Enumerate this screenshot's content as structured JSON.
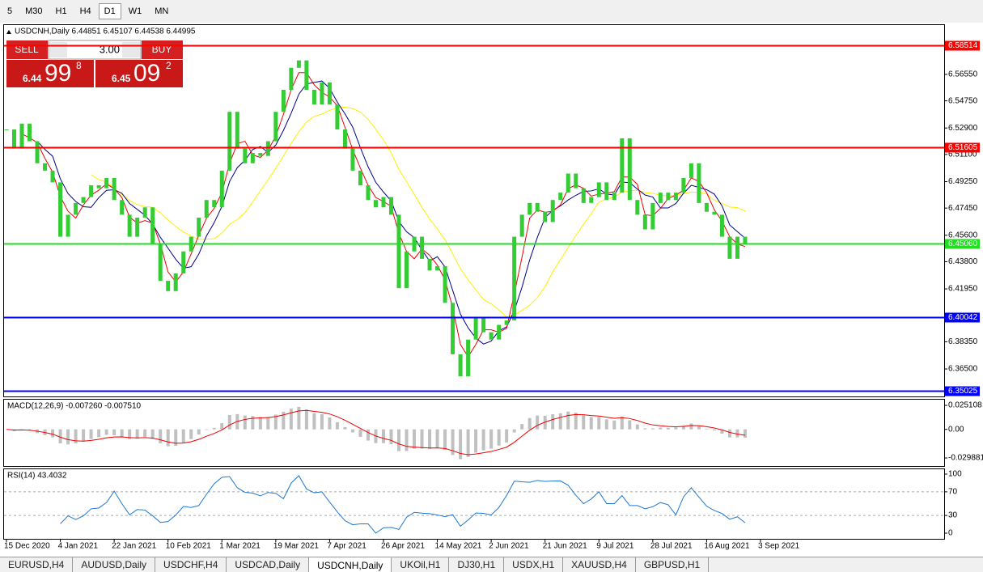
{
  "timeframes": [
    "5",
    "M30",
    "H1",
    "H4",
    "D1",
    "W1",
    "MN"
  ],
  "active_timeframe": 4,
  "trade_panel": {
    "sell": "SELL",
    "buy": "BUY",
    "lots": "3.00",
    "bid_big": "6.44",
    "bid_pips": "99",
    "bid_frac": "8",
    "ask_big": "6.45",
    "ask_pips": "09",
    "ask_frac": "2"
  },
  "chart_data": {
    "type": "candlestick",
    "title": "USDCNH,Daily 6.44851 6.45107 6.44538 6.44995",
    "color": "#33cc33",
    "categories": [
      "15 Dec 2020",
      null,
      null,
      null,
      null,
      null,
      null,
      "4 Jan 2021",
      null,
      null,
      null,
      null,
      null,
      null,
      "22 Jan 2021",
      null,
      null,
      null,
      null,
      null,
      null,
      "10 Feb 2021",
      null,
      null,
      null,
      null,
      null,
      null,
      "1 Mar 2021",
      null,
      null,
      null,
      null,
      null,
      null,
      "19 Mar 2021",
      null,
      null,
      null,
      null,
      null,
      null,
      "7 Apr 2021",
      null,
      null,
      null,
      null,
      null,
      null,
      "26 Apr 2021",
      null,
      null,
      null,
      null,
      null,
      null,
      "14 May 2021",
      null,
      null,
      null,
      null,
      null,
      null,
      "2 Jun 2021",
      null,
      null,
      null,
      null,
      null,
      null,
      "21 Jun 2021",
      null,
      null,
      null,
      null,
      null,
      null,
      "9 Jul 2021",
      null,
      null,
      null,
      null,
      null,
      null,
      "28 Jul 2021",
      null,
      null,
      null,
      null,
      null,
      null,
      "16 Aug 2021",
      null,
      null,
      null,
      null,
      null,
      null,
      "3 Sep 2021"
    ],
    "close": [
      6.528,
      6.515,
      6.532,
      6.52,
      6.505,
      6.5,
      6.492,
      6.455,
      6.47,
      6.478,
      6.482,
      6.49,
      6.488,
      6.495,
      6.48,
      6.47,
      6.455,
      6.468,
      6.475,
      6.45,
      6.425,
      6.418,
      6.43,
      6.445,
      6.455,
      6.468,
      6.48,
      6.475,
      6.5,
      6.54,
      6.515,
      6.505,
      6.512,
      6.51,
      6.52,
      6.54,
      6.555,
      6.57,
      6.575,
      6.555,
      6.545,
      6.56,
      6.545,
      6.528,
      6.515,
      6.5,
      6.49,
      6.48,
      6.475,
      6.482,
      6.47,
      6.42,
      6.445,
      6.455,
      6.44,
      6.432,
      6.435,
      6.41,
      6.375,
      6.36,
      6.385,
      6.4,
      6.39,
      6.385,
      6.395,
      6.398,
      6.455,
      6.47,
      6.478,
      6.472,
      6.465,
      6.48,
      6.485,
      6.498,
      6.488,
      6.478,
      6.482,
      6.492,
      6.48,
      6.485,
      6.522,
      6.48,
      6.47,
      6.46,
      6.478,
      6.485,
      6.48,
      6.485,
      6.495,
      6.505,
      6.478,
      6.472,
      6.47,
      6.455,
      6.44,
      6.455,
      6.45,
      null,
      null
    ],
    "ylim": [
      6.3463,
      6.5996
    ],
    "yticks": [
      {
        "value": 6.5655,
        "label": "6.56550"
      },
      {
        "value": 6.5475,
        "label": "6.54750"
      },
      {
        "value": 6.529,
        "label": "6.52900"
      },
      {
        "value": 6.511,
        "label": "6.51100"
      },
      {
        "value": 6.4925,
        "label": "6.49250"
      },
      {
        "value": 6.4745,
        "label": "6.47450"
      },
      {
        "value": 6.456,
        "label": "6.45600"
      },
      {
        "value": 6.438,
        "label": "6.43800"
      },
      {
        "value": 6.4195,
        "label": "6.41950"
      },
      {
        "value": 6.3835,
        "label": "6.38350"
      },
      {
        "value": 6.365,
        "label": "6.36500"
      }
    ],
    "levels": [
      {
        "value": 6.58514,
        "label": "6.58514",
        "color": "#ff0000"
      },
      {
        "value": 6.51605,
        "label": "6.51605",
        "color": "#ff0000"
      },
      {
        "value": 6.4506,
        "label": "6.45060",
        "color": "#22dd22"
      },
      {
        "value": 6.40042,
        "label": "6.40042",
        "color": "#0000ff"
      },
      {
        "value": 6.35025,
        "label": "6.35025",
        "color": "#0000ff"
      }
    ],
    "macd": {
      "label": "MACD(12,26,9) -0.007260 -0.007510",
      "ylim": [
        -0.0383,
        0.0319
      ],
      "yticks": [
        {
          "value": 0.025108,
          "label": "0.025108"
        },
        {
          "value": 0,
          "label": "0.00"
        },
        {
          "value": -0.029881,
          "label": "-0.029881"
        }
      ]
    },
    "rsi": {
      "label": "RSI(14) 43.4032",
      "ylim": [
        -9.6,
        109.6
      ],
      "yticks": [
        100,
        70,
        30,
        0
      ]
    }
  },
  "tabs": [
    "EURUSD,H4",
    "AUDUSD,Daily",
    "USDCHF,H4",
    "USDCAD,Daily",
    "USDCNH,Daily",
    "UKOil,H1",
    "DJ30,H1",
    "USDX,H1",
    "XAUUSD,H4",
    "GBPUSD,H1"
  ],
  "active_tab": 4
}
